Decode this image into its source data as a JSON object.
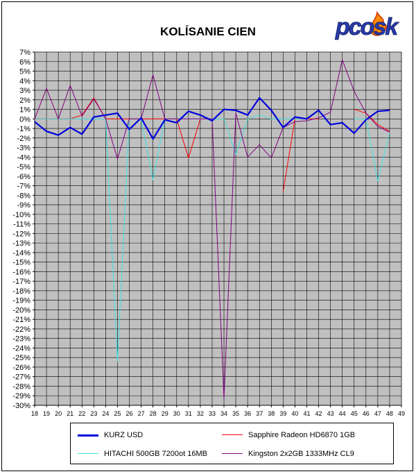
{
  "brand": {
    "logo_text": "pcosk"
  },
  "chart_data": {
    "type": "line",
    "title": "KOLÍSANIE CIEN",
    "xlabel": "",
    "ylabel": "",
    "x": [
      18,
      19,
      20,
      21,
      22,
      23,
      24,
      25,
      26,
      27,
      28,
      29,
      30,
      31,
      32,
      33,
      34,
      35,
      36,
      37,
      38,
      39,
      40,
      41,
      42,
      43,
      44,
      45,
      46,
      47,
      48
    ],
    "x_ticks": [
      "18",
      "19",
      "20",
      "21",
      "22",
      "23",
      "24",
      "25",
      "26",
      "27",
      "28",
      "29",
      "30",
      "31",
      "32",
      "33",
      "34",
      "35",
      "36",
      "37",
      "38",
      "39",
      "40",
      "41",
      "42",
      "43",
      "44",
      "45",
      "46",
      "47",
      "48",
      "49"
    ],
    "xlim": [
      18,
      49
    ],
    "ylim": [
      -30,
      7
    ],
    "y_ticks": [
      "7%",
      "6%",
      "5%",
      "4%",
      "3%",
      "2%",
      "1%",
      "0%",
      "-1%",
      "-2%",
      "-3%",
      "-4%",
      "-5%",
      "-6%",
      "-7%",
      "-8%",
      "-9%",
      "-10%",
      "-11%",
      "-12%",
      "-13%",
      "-14%",
      "-15%",
      "-16%",
      "-17%",
      "-18%",
      "-19%",
      "-20%",
      "-21%",
      "-22%",
      "-23%",
      "-24%",
      "-25%",
      "-26%",
      "-27%",
      "-28%",
      "-29%",
      "-30%"
    ],
    "grid": true,
    "legend_position": "bottom",
    "background": "#c0c0c0",
    "series": [
      {
        "name": "KURZ USD",
        "color": "#0000dd",
        "width": 2.2,
        "values": [
          -0.3,
          -1.3,
          -1.7,
          -0.9,
          -1.6,
          0.2,
          0.4,
          0.6,
          -1.1,
          0.1,
          -2.1,
          -0.1,
          -0.4,
          0.8,
          0.4,
          -0.2,
          1.0,
          0.9,
          0.4,
          2.2,
          0.9,
          -0.9,
          0.2,
          0.0,
          0.9,
          -0.6,
          -0.4,
          -1.5,
          -0.1,
          0.8,
          0.9
        ]
      },
      {
        "name": "Sapphire Radeon HD6870 1GB",
        "color": "#ff0000",
        "width": 1,
        "values": [
          0,
          0,
          0,
          0,
          0.4,
          2.2,
          0,
          0,
          0,
          0,
          0,
          0,
          0,
          -4.1,
          0,
          0,
          null,
          null,
          null,
          null,
          null,
          -7.6,
          0,
          0,
          0,
          null,
          null,
          1.0,
          0.6,
          -0.6,
          -1.3
        ]
      },
      {
        "name": "HITACHI 500GB 7200ot 16MB",
        "color": "#40e0e0",
        "width": 1,
        "values": [
          0,
          0,
          0,
          0,
          0,
          0,
          0,
          -25.4,
          0,
          0,
          -6.4,
          0,
          0,
          0,
          0,
          0,
          0,
          -3.7,
          0,
          0.4,
          0,
          0,
          0,
          0,
          null,
          null,
          null,
          0,
          0,
          -6.5,
          -1.4
        ]
      },
      {
        "name": "Kingston 2x2GB 1333MHz CL9",
        "color": "#800080",
        "width": 1,
        "values": [
          0,
          3.2,
          0,
          3.5,
          0.3,
          2.1,
          0,
          -4.2,
          0,
          0,
          4.6,
          0,
          0,
          0,
          0,
          0,
          -29.3,
          0.6,
          -4.0,
          -2.7,
          -4.1,
          -0.9,
          -0.3,
          -0.2,
          0.1,
          0.7,
          6.2,
          2.9,
          0.6,
          -0.8,
          -1.4
        ]
      }
    ]
  }
}
